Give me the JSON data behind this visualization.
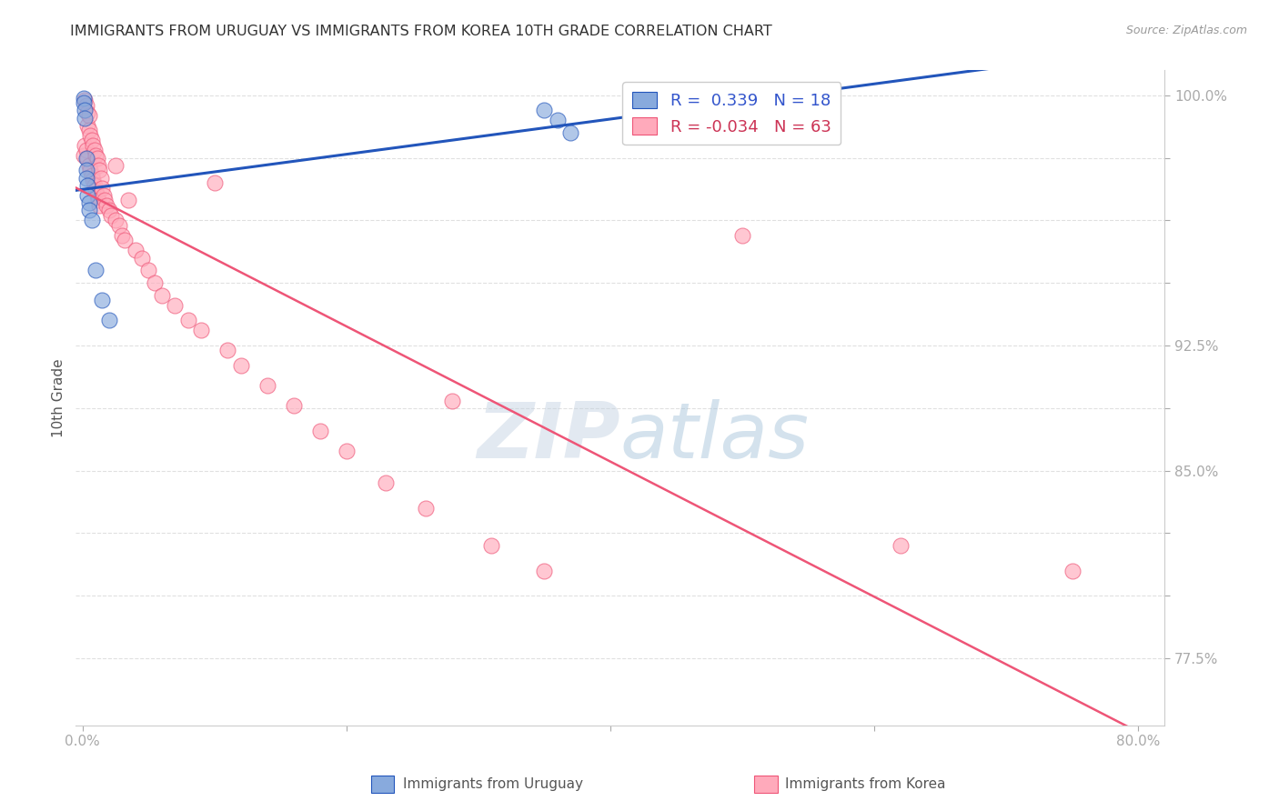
{
  "title": "IMMIGRANTS FROM URUGUAY VS IMMIGRANTS FROM KOREA 10TH GRADE CORRELATION CHART",
  "source": "Source: ZipAtlas.com",
  "ylabel": "10th Grade",
  "legend_label_uruguay": "Immigrants from Uruguay",
  "legend_label_korea": "Immigrants from Korea",
  "R_uruguay": 0.339,
  "N_uruguay": 18,
  "R_korea": -0.034,
  "N_korea": 63,
  "x_min": -0.005,
  "x_max": 0.82,
  "y_min": 0.748,
  "y_max": 1.01,
  "y_tick_positions": [
    0.775,
    0.8,
    0.825,
    0.85,
    0.875,
    0.9,
    0.925,
    0.95,
    0.975,
    1.0
  ],
  "y_tick_labels": [
    "77.5%",
    "",
    "",
    "85.0%",
    "",
    "92.5%",
    "",
    "",
    "",
    "100.0%"
  ],
  "x_tick_positions": [
    0.0,
    0.2,
    0.4,
    0.6,
    0.8
  ],
  "x_tick_labels": [
    "0.0%",
    "",
    "",
    "",
    "80.0%"
  ],
  "color_uruguay": "#88aadd",
  "color_korea": "#ffaabb",
  "color_line_uruguay": "#2255bb",
  "color_line_korea": "#ee5577",
  "watermark_color": "#c8ddf0",
  "watermark_alpha": 0.5,
  "background_color": "#ffffff",
  "grid_color": "#e0e0e0",
  "title_fontsize": 11.5,
  "source_fontsize": 9,
  "tick_fontsize": 11,
  "legend_fontsize": 13,
  "uruguay_scatter_x": [
    0.001,
    0.001,
    0.002,
    0.002,
    0.003,
    0.003,
    0.003,
    0.004,
    0.004,
    0.005,
    0.005,
    0.007,
    0.01,
    0.015,
    0.02,
    0.35,
    0.36,
    0.37
  ],
  "uruguay_scatter_y": [
    0.999,
    0.997,
    0.994,
    0.991,
    0.975,
    0.97,
    0.967,
    0.964,
    0.96,
    0.957,
    0.954,
    0.95,
    0.93,
    0.918,
    0.91,
    0.994,
    0.99,
    0.985
  ],
  "korea_scatter_x": [
    0.001,
    0.002,
    0.002,
    0.003,
    0.003,
    0.004,
    0.004,
    0.004,
    0.005,
    0.005,
    0.005,
    0.006,
    0.006,
    0.007,
    0.007,
    0.008,
    0.008,
    0.009,
    0.009,
    0.01,
    0.01,
    0.011,
    0.011,
    0.012,
    0.012,
    0.013,
    0.013,
    0.014,
    0.015,
    0.016,
    0.017,
    0.018,
    0.02,
    0.022,
    0.025,
    0.025,
    0.028,
    0.03,
    0.032,
    0.035,
    0.04,
    0.045,
    0.05,
    0.055,
    0.06,
    0.07,
    0.08,
    0.09,
    0.1,
    0.11,
    0.12,
    0.14,
    0.16,
    0.18,
    0.2,
    0.23,
    0.26,
    0.28,
    0.31,
    0.35,
    0.5,
    0.62,
    0.75
  ],
  "korea_scatter_y": [
    0.976,
    0.998,
    0.98,
    0.996,
    0.978,
    0.993,
    0.988,
    0.975,
    0.992,
    0.986,
    0.972,
    0.984,
    0.97,
    0.982,
    0.968,
    0.98,
    0.966,
    0.978,
    0.964,
    0.976,
    0.962,
    0.975,
    0.96,
    0.972,
    0.958,
    0.97,
    0.956,
    0.967,
    0.963,
    0.96,
    0.958,
    0.956,
    0.954,
    0.952,
    0.972,
    0.95,
    0.948,
    0.944,
    0.942,
    0.958,
    0.938,
    0.935,
    0.93,
    0.925,
    0.92,
    0.916,
    0.91,
    0.906,
    0.965,
    0.898,
    0.892,
    0.884,
    0.876,
    0.866,
    0.858,
    0.845,
    0.835,
    0.878,
    0.82,
    0.81,
    0.944,
    0.82,
    0.81
  ]
}
